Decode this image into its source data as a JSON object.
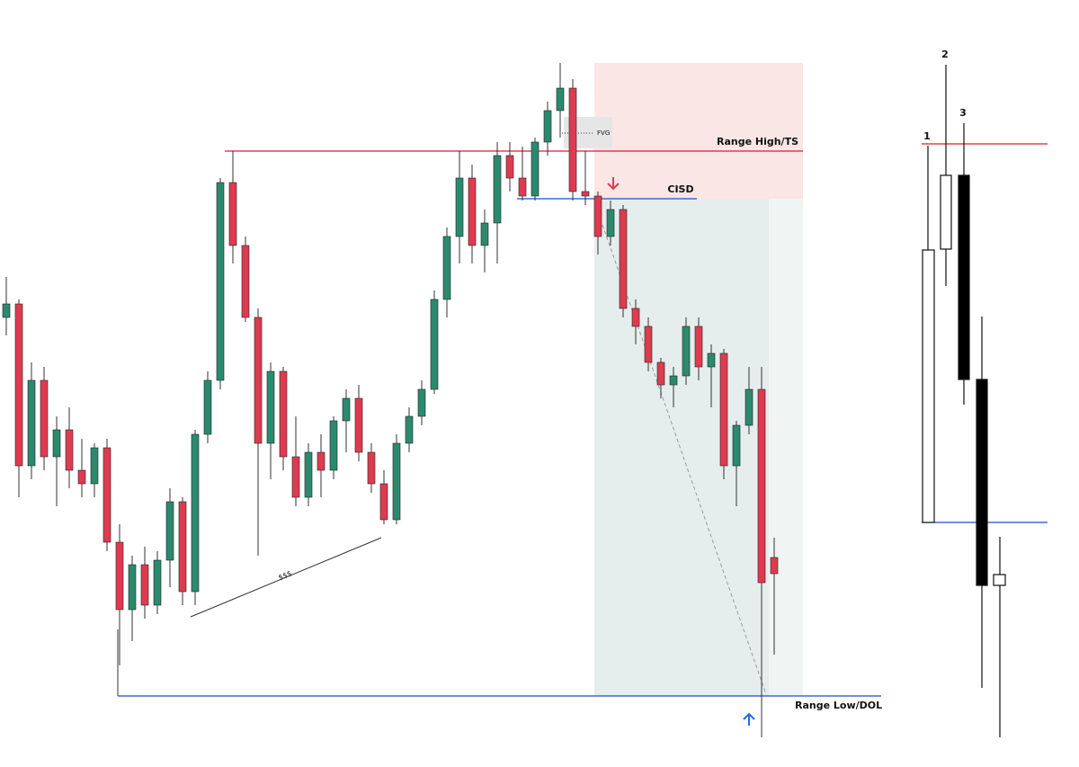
{
  "chart_data": {
    "type": "candlestick",
    "open": [
      500,
      515,
      335,
      430,
      345,
      375,
      330,
      315,
      355,
      250,
      175,
      225,
      180,
      230,
      295,
      195,
      370,
      430,
      650,
      580,
      500,
      360,
      440,
      345,
      300,
      350,
      330,
      385,
      410,
      350,
      315,
      275,
      360,
      390,
      420,
      520,
      590,
      655,
      580,
      605,
      680,
      655,
      635,
      695,
      730,
      755,
      640,
      635,
      590,
      620,
      510,
      490,
      450,
      425,
      435,
      490,
      445,
      460,
      335,
      380,
      420,
      233
    ],
    "high": [
      545,
      520,
      450,
      445,
      390,
      400,
      365,
      360,
      365,
      270,
      235,
      245,
      240,
      310,
      300,
      375,
      440,
      655,
      685,
      590,
      510,
      450,
      445,
      390,
      360,
      370,
      390,
      420,
      425,
      360,
      330,
      370,
      400,
      430,
      530,
      600,
      685,
      670,
      620,
      695,
      695,
      690,
      700,
      740,
      783,
      765,
      685,
      640,
      630,
      625,
      520,
      500,
      455,
      445,
      500,
      500,
      470,
      465,
      385,
      445,
      445,
      255
    ],
    "low": [
      480,
      300,
      320,
      330,
      290,
      310,
      300,
      300,
      240,
      113,
      140,
      165,
      170,
      200,
      180,
      180,
      360,
      420,
      560,
      495,
      235,
      320,
      330,
      290,
      290,
      300,
      320,
      350,
      340,
      305,
      270,
      270,
      350,
      380,
      415,
      500,
      560,
      560,
      550,
      560,
      640,
      630,
      630,
      680,
      700,
      630,
      625,
      570,
      580,
      500,
      470,
      440,
      410,
      400,
      425,
      430,
      400,
      320,
      290,
      370,
      33,
      125
    ],
    "close": [
      515,
      335,
      430,
      345,
      375,
      330,
      315,
      355,
      250,
      175,
      225,
      180,
      230,
      295,
      195,
      370,
      430,
      650,
      580,
      500,
      360,
      440,
      345,
      300,
      350,
      330,
      385,
      410,
      350,
      315,
      275,
      360,
      390,
      420,
      520,
      590,
      655,
      580,
      605,
      680,
      655,
      635,
      695,
      730,
      755,
      640,
      635,
      590,
      620,
      510,
      490,
      450,
      425,
      435,
      490,
      445,
      460,
      335,
      380,
      420,
      205,
      215
    ],
    "up_color": "#2b8a6e",
    "down_color": "#de3b50",
    "ylim": [
      0,
      853
    ],
    "annotations": {
      "range_high": "Range High/TS",
      "cisd": "CISD",
      "fvg": "FVG",
      "liquidity": "$$$",
      "range_low": "Range Low/DOL"
    },
    "schematic_labels": [
      "1",
      "2",
      "3"
    ]
  }
}
